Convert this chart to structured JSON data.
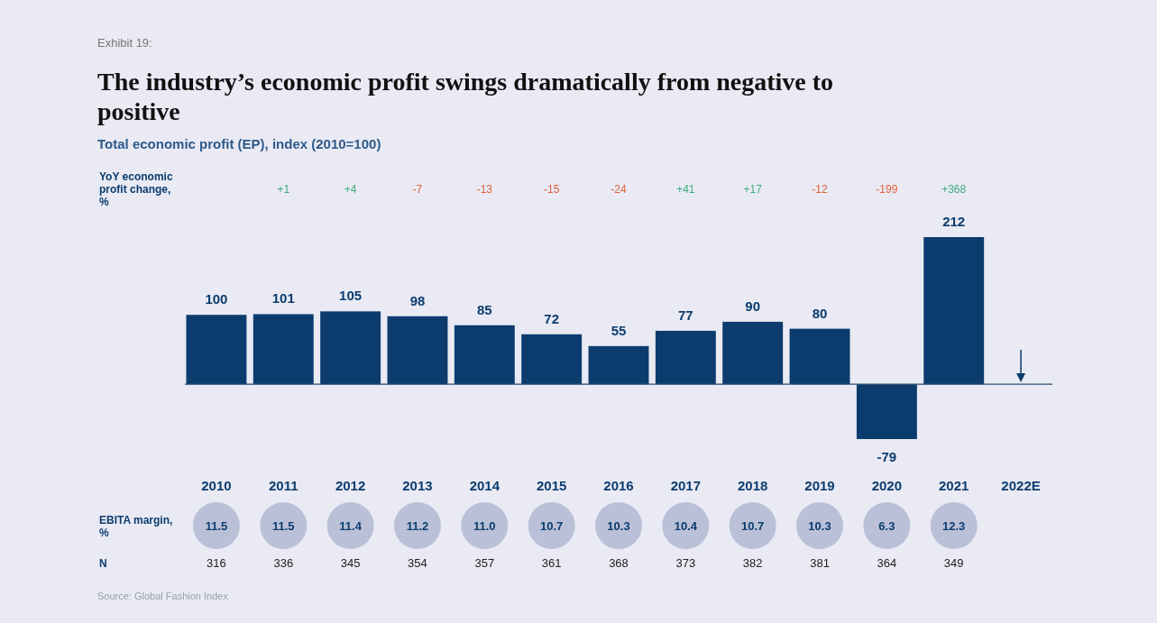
{
  "chart_data": {
    "type": "bar",
    "title": "The industry’s economic profit swings dramatically from negative to positive",
    "subtitle": "Total economic profit (EP), index (2010=100)",
    "categories": [
      "2010",
      "2011",
      "2012",
      "2013",
      "2014",
      "2015",
      "2016",
      "2017",
      "2018",
      "2019",
      "2020",
      "2021",
      "2022E"
    ],
    "values": [
      100,
      101,
      105,
      98,
      85,
      72,
      55,
      77,
      90,
      80,
      -79,
      212,
      null
    ],
    "color": "#0c3c6e",
    "data_labels": true,
    "ref_lines": [
      {
        "axis": "y",
        "value": 0,
        "color": "#2c4a6e"
      }
    ],
    "annotations": [
      "Exhibit 19:",
      "YoY economic profit change, %",
      "+1",
      "+4",
      "-7",
      "-13",
      "-15",
      "-24",
      "+41",
      "+17",
      "-12",
      "-199",
      "+368",
      "EBITA margin, %",
      "11.5",
      "11.5",
      "11.4",
      "11.2",
      "11.0",
      "10.7",
      "10.3",
      "10.4",
      "10.7",
      "10.3",
      "6.3",
      "12.3",
      "N",
      "316",
      "336",
      "345",
      "354",
      "357",
      "361",
      "368",
      "373",
      "382",
      "381",
      "364",
      "349",
      "Source: Global Fashion Index"
    ]
  }
}
